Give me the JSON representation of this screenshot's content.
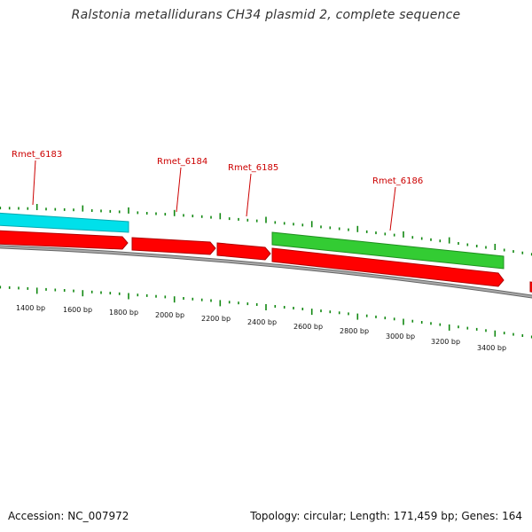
{
  "title": "Ralstonia metallidurans CH34 plasmid 2, complete sequence",
  "footer": {
    "accession": "Accession: NC_007972",
    "stats": "Topology: circular; Length: 171,459 bp; Genes: 164"
  },
  "colors": {
    "forward_gene": "#ff0000",
    "reverse_gene_cyan": "#00e5ee",
    "reverse_gene_green": "#33cc33",
    "backbone": "#888888",
    "tick": "#118811",
    "label": "#cc0000"
  },
  "genes": [
    {
      "name": "Rmet_6183"
    },
    {
      "name": "Rmet_6184"
    },
    {
      "name": "Rmet_6185"
    },
    {
      "name": "Rmet_6186"
    }
  ],
  "scale_labels": [
    "1400 bp",
    "1600 bp",
    "1800 bp",
    "2000 bp",
    "2200 bp",
    "2400 bp",
    "2600 bp",
    "2800 bp",
    "3000 bp",
    "3200 bp",
    "3400 bp"
  ]
}
